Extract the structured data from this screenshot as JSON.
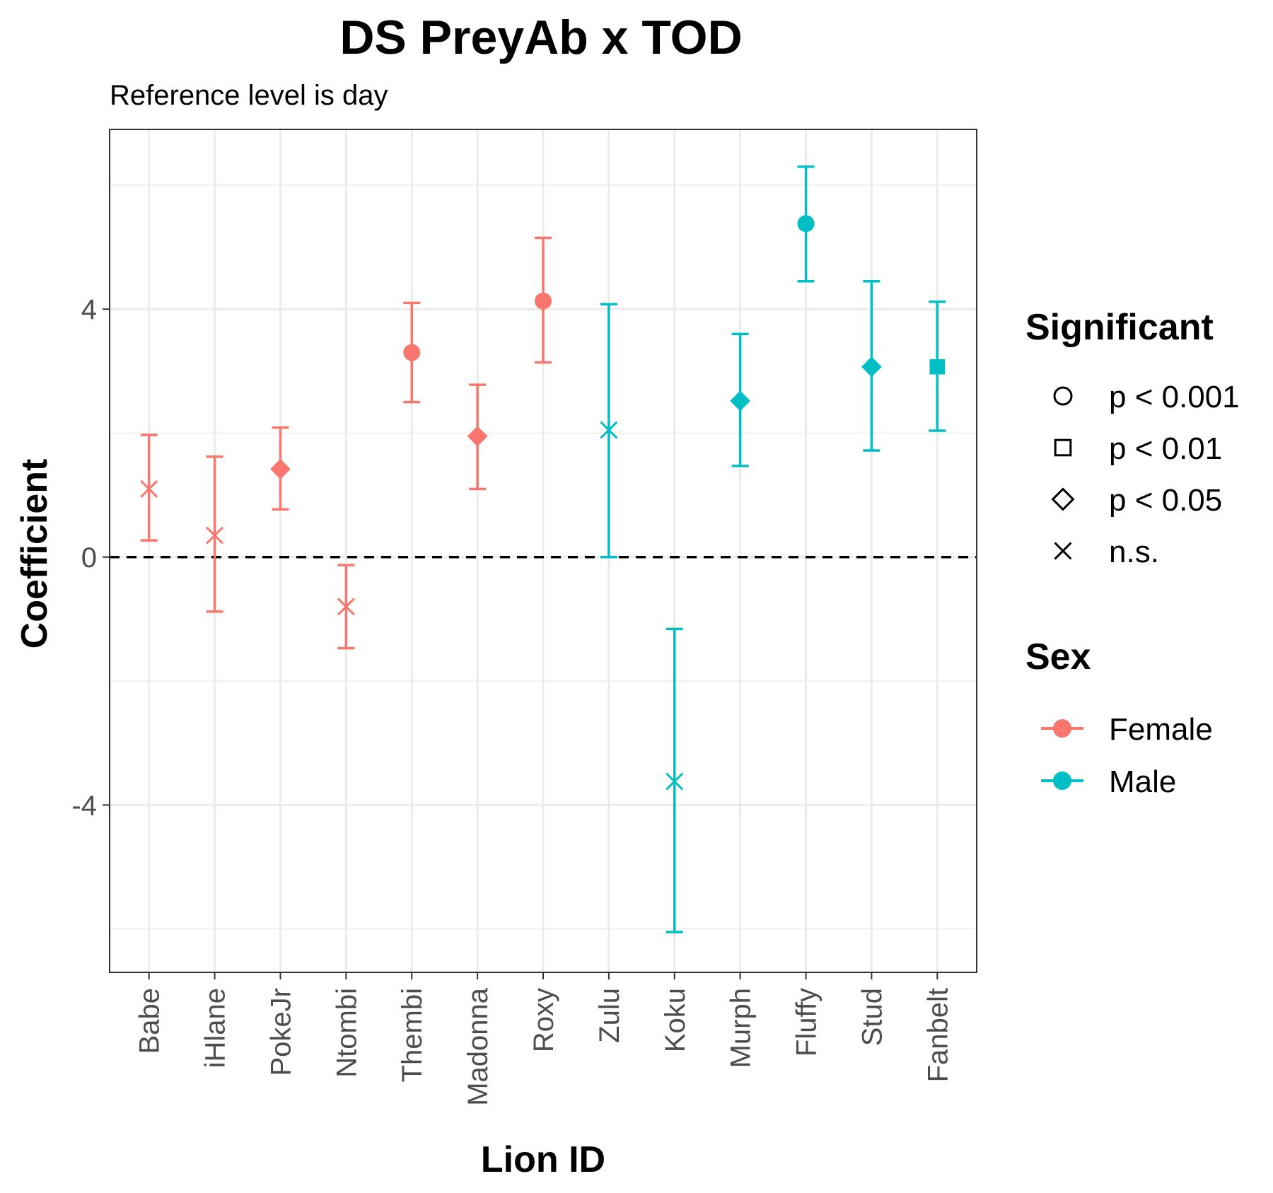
{
  "chart_data": {
    "type": "scatter",
    "title": "DS PreyAb x TOD",
    "subtitle": "Reference level is day",
    "xlabel": "Lion ID",
    "ylabel": "Coefficient",
    "ylim": [
      -6.7,
      6.9
    ],
    "yticks": [
      -4,
      0,
      4
    ],
    "yticks_minor": [
      -6,
      -2,
      2,
      6
    ],
    "grid": true,
    "reference_line": 0,
    "categories": [
      "Babe",
      "iHlane",
      "PokeJr",
      "Ntombi",
      "Thembi",
      "Madonna",
      "Roxy",
      "Zulu",
      "Koku",
      "Murph",
      "Fluffy",
      "Stud",
      "Fanbelt"
    ],
    "points": [
      {
        "id": "Babe",
        "value": 1.1,
        "lower": 0.27,
        "upper": 1.97,
        "sex": "Female",
        "significance": "n.s."
      },
      {
        "id": "iHlane",
        "value": 0.35,
        "lower": -0.88,
        "upper": 1.62,
        "sex": "Female",
        "significance": "n.s."
      },
      {
        "id": "PokeJr",
        "value": 1.42,
        "lower": 0.77,
        "upper": 2.09,
        "sex": "Female",
        "significance": "p < 0.05"
      },
      {
        "id": "Ntombi",
        "value": -0.8,
        "lower": -1.47,
        "upper": -0.13,
        "sex": "Female",
        "significance": "n.s."
      },
      {
        "id": "Thembi",
        "value": 3.3,
        "lower": 2.5,
        "upper": 4.1,
        "sex": "Female",
        "significance": "p < 0.001"
      },
      {
        "id": "Madonna",
        "value": 1.95,
        "lower": 1.1,
        "upper": 2.78,
        "sex": "Female",
        "significance": "p < 0.05"
      },
      {
        "id": "Roxy",
        "value": 4.13,
        "lower": 3.14,
        "upper": 5.15,
        "sex": "Female",
        "significance": "p < 0.001"
      },
      {
        "id": "Zulu",
        "value": 2.05,
        "lower": 0.0,
        "upper": 4.08,
        "sex": "Male",
        "significance": "n.s."
      },
      {
        "id": "Koku",
        "value": -3.62,
        "lower": -6.05,
        "upper": -1.16,
        "sex": "Male",
        "significance": "n.s."
      },
      {
        "id": "Murph",
        "value": 2.52,
        "lower": 1.47,
        "upper": 3.6,
        "sex": "Male",
        "significance": "p < 0.05"
      },
      {
        "id": "Fluffy",
        "value": 5.38,
        "lower": 4.45,
        "upper": 6.3,
        "sex": "Male",
        "significance": "p < 0.001"
      },
      {
        "id": "Stud",
        "value": 3.07,
        "lower": 1.72,
        "upper": 4.45,
        "sex": "Male",
        "significance": "p < 0.05"
      },
      {
        "id": "Fanbelt",
        "value": 3.07,
        "lower": 2.04,
        "upper": 4.12,
        "sex": "Male",
        "significance": "p < 0.01"
      }
    ],
    "legend": {
      "placement": "right",
      "significant": {
        "title": "Significant",
        "items": [
          {
            "label": "p < 0.001",
            "shape": "circle"
          },
          {
            "label": "p < 0.01",
            "shape": "square"
          },
          {
            "label": "p < 0.05",
            "shape": "diamond"
          },
          {
            "label": "n.s.",
            "shape": "cross"
          }
        ]
      },
      "sex": {
        "title": "Sex",
        "items": [
          {
            "label": "Female",
            "color": "#F8766D"
          },
          {
            "label": "Male",
            "color": "#00BFC4"
          }
        ]
      }
    }
  }
}
